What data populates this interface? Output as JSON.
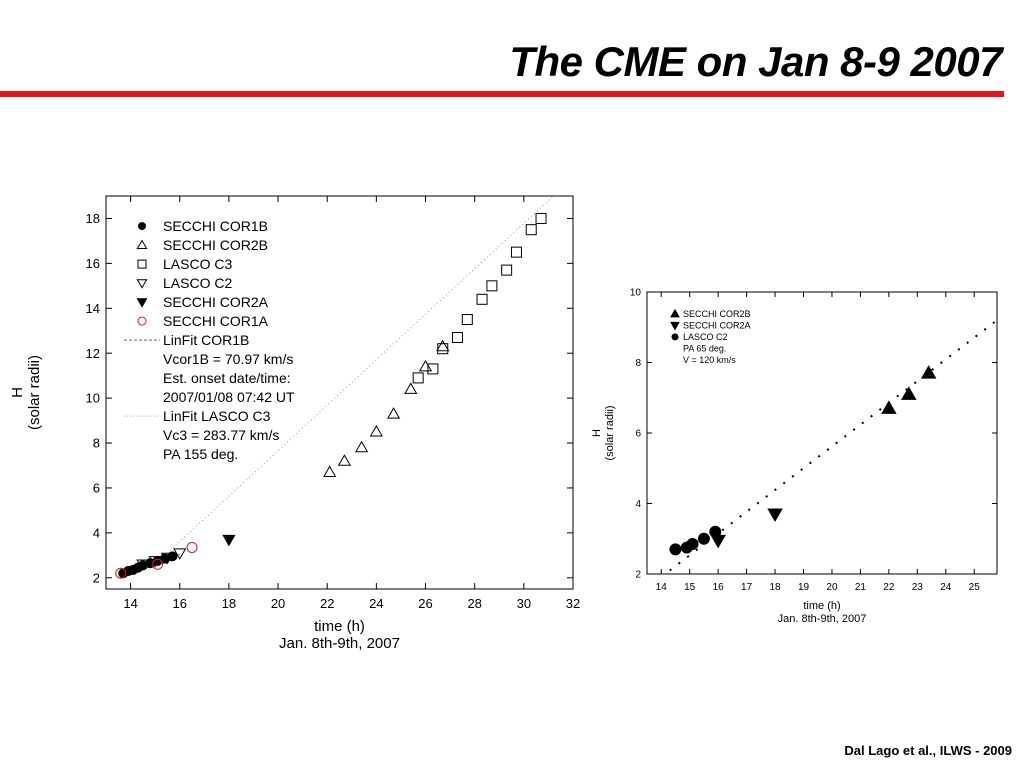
{
  "slide": {
    "title": "The CME on Jan 8-9 2007",
    "footer": "Dal Lago et al., ILWS - 2009"
  },
  "chart_data": [
    {
      "type": "scatter",
      "ylabel_line1": "H",
      "ylabel_line2": "(solar radii)",
      "xlabel_line1": "time (h)",
      "xlabel_line2": "Jan. 8th-9th, 2007",
      "xlim": [
        13,
        32
      ],
      "ylim": [
        1.5,
        19
      ],
      "xticks": [
        14,
        16,
        18,
        20,
        22,
        24,
        26,
        28,
        30,
        32
      ],
      "yticks": [
        2,
        4,
        6,
        8,
        10,
        12,
        14,
        16,
        18
      ],
      "legend_position": "top-left",
      "legend": [
        {
          "symbol": "filled-circle",
          "label": "SECCHI COR1B"
        },
        {
          "symbol": "open-triangle-up",
          "label": "SECCHI COR2B"
        },
        {
          "symbol": "open-square",
          "label": "LASCO C3"
        },
        {
          "symbol": "open-triangle-down",
          "label": "LASCO C2"
        },
        {
          "symbol": "filled-triangle-down",
          "label": "SECCHI COR2A"
        },
        {
          "symbol": "red-open-circle",
          "label": "SECCHI COR1A"
        },
        {
          "symbol": "dash-line",
          "label": "LinFit COR1B"
        },
        {
          "symbol": "none",
          "label": "Vcor1B = 70.97 km/s"
        },
        {
          "symbol": "none",
          "label": "Est. onset date/time:"
        },
        {
          "symbol": "none",
          "label": "2007/01/08 07:42 UT"
        },
        {
          "symbol": "dot-line",
          "label": "LinFit LASCO C3"
        },
        {
          "symbol": "none",
          "label": "Vc3 = 283.77 km/s"
        },
        {
          "symbol": "none",
          "label": "PA 155 deg."
        }
      ],
      "series": [
        {
          "name": "SECCHI COR1B",
          "marker": "filled-circle",
          "color": "#000000",
          "x": [
            13.7,
            13.9,
            14.1,
            14.3,
            14.5,
            14.8,
            15.1,
            15.4,
            15.7
          ],
          "y": [
            2.2,
            2.3,
            2.35,
            2.45,
            2.55,
            2.65,
            2.75,
            2.85,
            2.95
          ]
        },
        {
          "name": "SECCHI COR2B",
          "marker": "open-triangle-up",
          "color": "#000000",
          "x": [
            22.1,
            22.7,
            23.4,
            24.0,
            24.7,
            25.4,
            26.0,
            26.7
          ],
          "y": [
            6.7,
            7.2,
            7.8,
            8.5,
            9.3,
            10.4,
            11.4,
            12.3
          ]
        },
        {
          "name": "LASCO C3",
          "marker": "open-square",
          "color": "#000000",
          "x": [
            25.7,
            26.3,
            26.7,
            27.3,
            27.7,
            28.3,
            28.7,
            29.3,
            29.7,
            30.3,
            30.7
          ],
          "y": [
            10.9,
            11.3,
            12.2,
            12.7,
            13.5,
            14.4,
            15.0,
            15.7,
            16.5,
            17.5,
            18.0
          ]
        },
        {
          "name": "LASCO C2",
          "marker": "open-triangle-down",
          "color": "#000000",
          "x": [
            14.5,
            15.0,
            15.5,
            16.0
          ],
          "y": [
            2.6,
            2.75,
            2.9,
            3.1
          ]
        },
        {
          "name": "SECCHI COR2A",
          "marker": "filled-triangle-down",
          "color": "#000000",
          "x": [
            18.0
          ],
          "y": [
            3.7
          ]
        },
        {
          "name": "SECCHI COR1A",
          "marker": "open-circle",
          "color": "#e8141d",
          "x": [
            13.6,
            15.1,
            16.5
          ],
          "y": [
            2.2,
            2.6,
            3.35
          ]
        }
      ],
      "fits": [
        {
          "name": "LinFit COR1B",
          "style": "dash",
          "x": [
            13.5,
            16.0
          ],
          "y": [
            2.15,
            3.05
          ]
        },
        {
          "name": "LinFit LASCO C3",
          "style": "dot",
          "x": [
            15.0,
            31.2
          ],
          "y": [
            2.6,
            19.0
          ]
        }
      ]
    },
    {
      "type": "scatter",
      "ylabel_line1": "H",
      "ylabel_line2": "(solar radii)",
      "xlabel_line1": "time (h)",
      "xlabel_line2": "Jan. 8th-9th, 2007",
      "xlim": [
        13.5,
        25.8
      ],
      "ylim": [
        2,
        10
      ],
      "xticks": [
        14,
        15,
        16,
        17,
        18,
        19,
        20,
        21,
        22,
        23,
        24,
        25
      ],
      "yticks": [
        2,
        4,
        6,
        8,
        10
      ],
      "legend_position": "top-left",
      "legend": [
        {
          "symbol": "filled-triangle-up",
          "label": "SECCHI COR2B"
        },
        {
          "symbol": "filled-triangle-down",
          "label": "SECCHI COR2A"
        },
        {
          "symbol": "filled-circle",
          "label": "LASCO C2"
        },
        {
          "symbol": "none",
          "label": "PA 65 deg."
        },
        {
          "symbol": "none",
          "label": "V = 120 km/s"
        }
      ],
      "series": [
        {
          "name": "SECCHI COR2B",
          "marker": "filled-triangle-up",
          "color": "#000000",
          "x": [
            22.0,
            22.7,
            23.4
          ],
          "y": [
            6.7,
            7.1,
            7.7
          ]
        },
        {
          "name": "SECCHI COR2A",
          "marker": "filled-triangle-down",
          "color": "#000000",
          "x": [
            16.0,
            18.0
          ],
          "y": [
            2.95,
            3.7
          ]
        },
        {
          "name": "LASCO C2",
          "marker": "filled-circle",
          "color": "#000000",
          "x": [
            14.5,
            14.9,
            15.1,
            15.5,
            15.9
          ],
          "y": [
            2.7,
            2.75,
            2.85,
            3.0,
            3.2
          ]
        }
      ],
      "fits": [
        {
          "name": "V = 120 km/s",
          "style": "dot",
          "x": [
            14.3,
            25.8
          ],
          "y": [
            2.1,
            9.2
          ]
        }
      ]
    }
  ]
}
